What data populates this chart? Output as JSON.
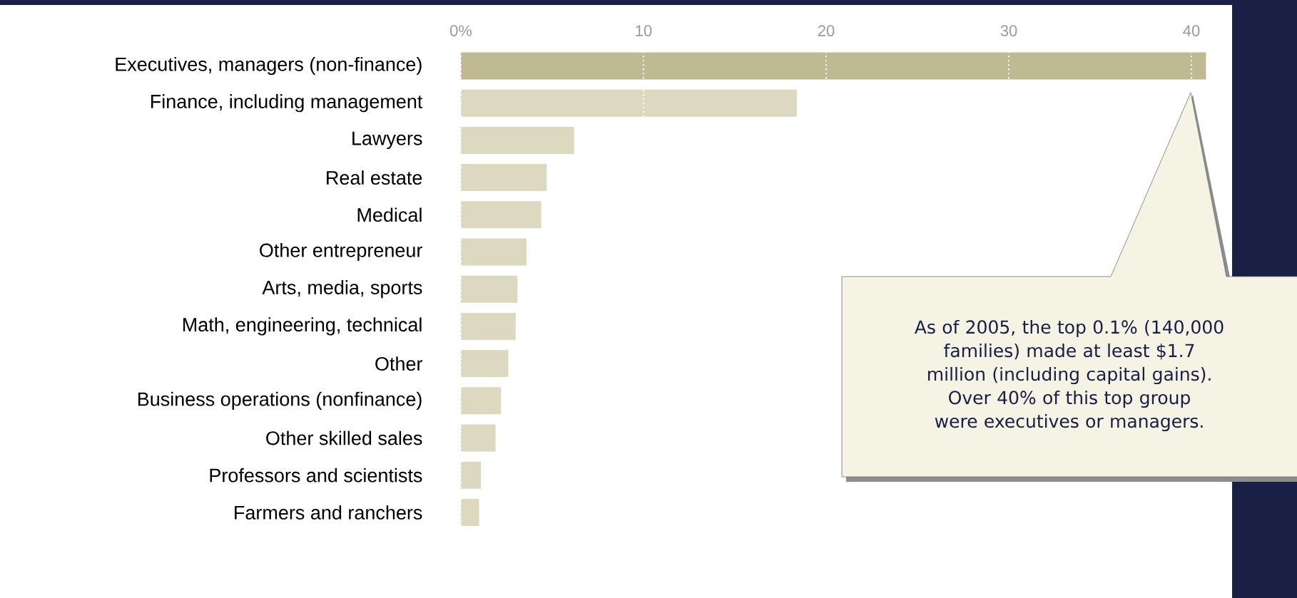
{
  "chart_data": {
    "type": "bar",
    "orientation": "horizontal",
    "categories": [
      "Executives, managers (non-finance)",
      "Finance, including management",
      "Lawyers",
      "Real estate",
      "Medical",
      "Other entrepreneur",
      "Arts, media, sports",
      "Math, engineering, technical",
      "Other",
      "Business operations (nonfinance)",
      "Other skilled sales",
      "Professors and scientists",
      "Farmers and ranchers"
    ],
    "values": [
      40.8,
      18.4,
      6.2,
      4.7,
      4.4,
      3.6,
      3.1,
      3.0,
      2.6,
      2.2,
      1.9,
      1.1,
      1.0
    ],
    "colors": [
      "#bfba91",
      "#dcd9c0",
      "#dcd9c0",
      "#dcd9c0",
      "#dcd9c0",
      "#dcd9c0",
      "#dcd9c0",
      "#dcd9c0",
      "#dcd9c0",
      "#dcd9c0",
      "#dcd9c0",
      "#dcd9c0",
      "#dcd9c0"
    ],
    "xlim": [
      0,
      41
    ],
    "xticks": [
      {
        "value": 0,
        "label": "0%"
      },
      10,
      20,
      30,
      40
    ],
    "grid": "x",
    "annotations": [
      "As of 2005, the top 0.1% (140,000 families) made at least $1.7 million (including capital gains). Over 40% of this top group were executives or managers."
    ]
  }
}
